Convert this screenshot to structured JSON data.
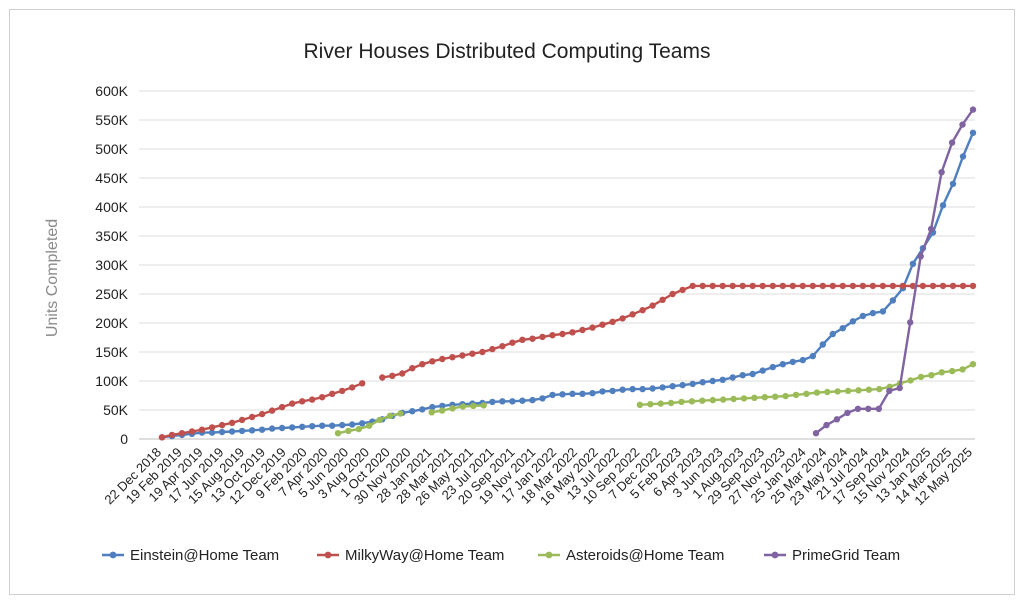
{
  "chart_data": {
    "type": "line",
    "title": "River Houses Distributed Computing Teams",
    "ylabel": "Units Completed",
    "xlabel": "",
    "ylim": [
      0,
      600000
    ],
    "y_ticks": [
      {
        "value": 0,
        "label": "0"
      },
      {
        "value": 50000,
        "label": "50K"
      },
      {
        "value": 100000,
        "label": "100K"
      },
      {
        "value": 150000,
        "label": "150K"
      },
      {
        "value": 200000,
        "label": "200K"
      },
      {
        "value": 250000,
        "label": "250K"
      },
      {
        "value": 300000,
        "label": "300K"
      },
      {
        "value": 350000,
        "label": "350K"
      },
      {
        "value": 400000,
        "label": "400K"
      },
      {
        "value": 450000,
        "label": "450K"
      },
      {
        "value": 500000,
        "label": "500K"
      },
      {
        "value": 550000,
        "label": "550K"
      },
      {
        "value": 600000,
        "label": "600K"
      }
    ],
    "x_tick_labels": [
      "22 Dec 2018",
      "19 Feb 2019",
      "19 Apr 2019",
      "17 Jun 2019",
      "15 Aug 2019",
      "13 Oct 2019",
      "12 Dec 2019",
      "9 Feb 2020",
      "7 Apr 2020",
      "5 Jun 2020",
      "3 Aug 2020",
      "1 Oct 2020",
      "30 Nov 2020",
      "28 Jan 2021",
      "28 Mar 2021",
      "26 May 2021",
      "23 Jul 2021",
      "20 Sep 2021",
      "19 Nov 2021",
      "17 Jan 2022",
      "18 Mar 2022",
      "16 May 2022",
      "13 Jul 2022",
      "10 Sep 2022",
      "7 Dec 2022",
      "5 Feb 2023",
      "6 Apr 2023",
      "3 Jun 2023",
      "1 Aug 2023",
      "29 Sep 2023",
      "27 Nov 2023",
      "25 Jan 2024",
      "25 Mar 2024",
      "23 May 2024",
      "21 Jul 2024",
      "17 Sep 2024",
      "15 Nov 2024",
      "13 Jan 2025",
      "14 Mar 2025",
      "12 May 2025"
    ],
    "grid": "horizontal",
    "legend_position": "bottom",
    "series": [
      {
        "name": "Einstein@Home Team",
        "color": "#4f7fbf",
        "points": [
          [
            0,
            3000
          ],
          [
            1,
            5000
          ],
          [
            2,
            7000
          ],
          [
            3,
            9000
          ],
          [
            4,
            11000
          ],
          [
            5,
            11000
          ],
          [
            6,
            12000
          ],
          [
            7,
            13000
          ],
          [
            8,
            14000
          ],
          [
            9,
            15000
          ],
          [
            10,
            16000
          ],
          [
            11,
            18000
          ],
          [
            12,
            19000
          ],
          [
            13,
            20000
          ],
          [
            14,
            21000
          ],
          [
            15,
            22000
          ],
          [
            16,
            23000
          ],
          [
            17,
            23000
          ],
          [
            18,
            24000
          ],
          [
            19,
            25000
          ],
          [
            20,
            27000
          ],
          [
            21,
            30000
          ],
          [
            22,
            34000
          ],
          [
            23,
            40000
          ],
          [
            24,
            45000
          ],
          [
            25,
            48000
          ],
          [
            26,
            51000
          ],
          [
            27,
            55000
          ],
          [
            28,
            57000
          ],
          [
            29,
            59000
          ],
          [
            30,
            60000
          ],
          [
            31,
            61000
          ],
          [
            32,
            62000
          ],
          [
            33,
            64000
          ],
          [
            34,
            65000
          ],
          [
            35,
            65000
          ],
          [
            36,
            66000
          ],
          [
            37,
            67000
          ],
          [
            38,
            70000
          ],
          [
            39,
            76000
          ],
          [
            40,
            77000
          ],
          [
            41,
            78000
          ],
          [
            42,
            78000
          ],
          [
            43,
            79000
          ],
          [
            44,
            82000
          ],
          [
            45,
            83000
          ],
          [
            46,
            85000
          ],
          [
            47,
            86000
          ],
          [
            48,
            86000
          ],
          [
            49,
            87000
          ],
          [
            50,
            89000
          ],
          [
            51,
            91000
          ],
          [
            52,
            93000
          ],
          [
            53,
            95000
          ],
          [
            54,
            98000
          ],
          [
            55,
            100000
          ],
          [
            56,
            102000
          ],
          [
            57,
            106000
          ],
          [
            58,
            110000
          ],
          [
            59,
            112000
          ],
          [
            60,
            118000
          ],
          [
            61,
            124000
          ],
          [
            62,
            129000
          ],
          [
            63,
            133000
          ],
          [
            64,
            136000
          ],
          [
            65,
            143000
          ],
          [
            66,
            163000
          ],
          [
            67,
            181000
          ],
          [
            68,
            191000
          ],
          [
            69,
            203000
          ],
          [
            70,
            212000
          ],
          [
            71,
            217000
          ],
          [
            72,
            220000
          ],
          [
            73,
            239000
          ],
          [
            74,
            260000
          ],
          [
            75,
            302000
          ],
          [
            76,
            329000
          ],
          [
            77,
            356000
          ],
          [
            78,
            403000
          ],
          [
            79,
            440000
          ],
          [
            80,
            487000
          ],
          [
            81,
            528000
          ]
        ]
      },
      {
        "name": "MilkyWay@Home Team",
        "color": "#c0504d",
        "points": [
          [
            0,
            3000
          ],
          [
            1,
            7000
          ],
          [
            2,
            10000
          ],
          [
            3,
            13000
          ],
          [
            4,
            16000
          ],
          [
            5,
            20000
          ],
          [
            6,
            24000
          ],
          [
            7,
            28000
          ],
          [
            8,
            33000
          ],
          [
            9,
            38000
          ],
          [
            10,
            43000
          ],
          [
            11,
            49000
          ],
          [
            12,
            55000
          ],
          [
            13,
            61000
          ],
          [
            14,
            65000
          ],
          [
            15,
            68000
          ],
          [
            16,
            72000
          ],
          [
            17,
            78000
          ],
          [
            18,
            83000
          ],
          [
            19,
            89000
          ],
          [
            20,
            96000
          ],
          null,
          [
            22,
            106000
          ],
          [
            23,
            109000
          ],
          [
            24,
            113000
          ],
          [
            25,
            122000
          ],
          [
            26,
            129000
          ],
          [
            27,
            134000
          ],
          [
            28,
            138000
          ],
          [
            29,
            141000
          ],
          [
            30,
            144000
          ],
          [
            31,
            147000
          ],
          [
            32,
            150000
          ],
          [
            33,
            155000
          ],
          [
            34,
            160000
          ],
          [
            35,
            166000
          ],
          [
            36,
            171000
          ],
          [
            37,
            173000
          ],
          [
            38,
            176000
          ],
          [
            39,
            179000
          ],
          [
            40,
            181000
          ],
          [
            41,
            184000
          ],
          [
            42,
            188000
          ],
          [
            43,
            192000
          ],
          [
            44,
            197000
          ],
          [
            45,
            202000
          ],
          [
            46,
            208000
          ],
          [
            47,
            215000
          ],
          [
            48,
            222000
          ],
          [
            49,
            230000
          ],
          [
            50,
            240000
          ],
          [
            51,
            250000
          ],
          [
            52,
            257000
          ],
          [
            53,
            264000
          ],
          [
            54,
            264000
          ],
          [
            55,
            264000
          ],
          [
            56,
            264000
          ],
          [
            57,
            264000
          ],
          [
            58,
            264000
          ],
          [
            59,
            264000
          ],
          [
            60,
            264000
          ],
          [
            61,
            264000
          ],
          [
            62,
            264000
          ],
          [
            63,
            264000
          ],
          [
            64,
            264000
          ],
          [
            65,
            264000
          ],
          [
            66,
            264000
          ],
          [
            67,
            264000
          ],
          [
            68,
            264000
          ],
          [
            69,
            264000
          ],
          [
            70,
            264000
          ],
          [
            71,
            264000
          ],
          [
            72,
            264000
          ],
          [
            73,
            264000
          ],
          [
            74,
            264000
          ],
          [
            75,
            264000
          ],
          [
            76,
            264000
          ],
          [
            77,
            264000
          ],
          [
            78,
            264000
          ],
          [
            79,
            264000
          ],
          [
            80,
            264000
          ],
          [
            81,
            264000
          ]
        ]
      },
      {
        "name": "Asteroids@Home Team",
        "color": "#9bbb59",
        "points": [
          [
            15,
            10000
          ],
          [
            16,
            14000
          ],
          [
            17,
            17000
          ],
          [
            18,
            23000
          ],
          [
            19,
            33000
          ],
          [
            20,
            40000
          ],
          [
            21,
            44000
          ],
          null,
          [
            24,
            46000
          ],
          [
            25,
            49000
          ],
          [
            26,
            53000
          ],
          [
            27,
            56000
          ],
          [
            28,
            57000
          ],
          [
            29,
            58000
          ],
          null,
          [
            44,
            59000
          ],
          [
            45,
            60000
          ],
          [
            46,
            61000
          ],
          [
            47,
            62000
          ],
          [
            48,
            64000
          ],
          [
            49,
            65000
          ],
          [
            50,
            66000
          ],
          [
            51,
            67000
          ],
          [
            52,
            68000
          ],
          [
            53,
            69000
          ],
          [
            54,
            70000
          ],
          [
            55,
            71000
          ],
          [
            56,
            72000
          ],
          [
            57,
            73000
          ],
          [
            58,
            74000
          ],
          [
            59,
            76000
          ],
          [
            60,
            78000
          ],
          [
            61,
            80000
          ],
          [
            62,
            81000
          ],
          [
            63,
            82000
          ],
          [
            64,
            83000
          ],
          [
            65,
            84000
          ],
          [
            66,
            85000
          ],
          [
            67,
            86000
          ],
          [
            68,
            90000
          ],
          [
            69,
            96000
          ],
          [
            70,
            101000
          ],
          [
            71,
            107000
          ],
          [
            72,
            110000
          ],
          [
            73,
            115000
          ],
          [
            74,
            117000
          ],
          [
            75,
            120000
          ],
          [
            76,
            129000
          ]
        ]
      },
      {
        "name": "PrimeGrid Team",
        "color": "#8064a2",
        "points": [
          [
            0,
            10000
          ],
          [
            1,
            24000
          ],
          [
            2,
            34000
          ],
          [
            3,
            45000
          ],
          [
            4,
            52000
          ],
          [
            5,
            52000
          ],
          [
            6,
            52000
          ],
          [
            7,
            83000
          ],
          [
            8,
            88000
          ],
          [
            9,
            201000
          ],
          [
            10,
            315000
          ],
          [
            11,
            362000
          ],
          [
            12,
            460000
          ],
          [
            13,
            511000
          ],
          [
            14,
            542000
          ],
          [
            15,
            568000
          ]
        ]
      }
    ]
  }
}
